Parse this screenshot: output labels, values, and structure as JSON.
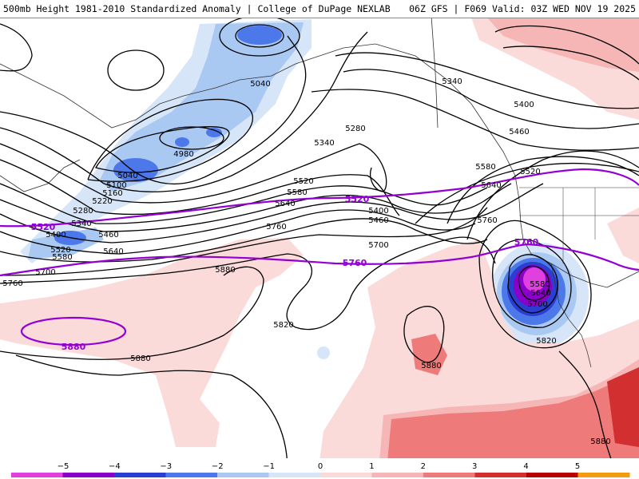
{
  "header": {
    "left_text": "500mb Height 1981-2010 Standardized Anomaly | College of DuPage NEXLAB",
    "right_text": "06Z GFS | F069 Valid: 03Z WED NOV 19 2025"
  },
  "contour_labels": {
    "h5340_ne": "5340",
    "h5400_ne": "5400",
    "h5460_ne": "5460",
    "h5040_n": "5040",
    "h5280_ak": "5280",
    "h5340_ak": "5340",
    "h4980": "4980",
    "h5040_low": "5040",
    "h5100": "5100",
    "h5160": "5160",
    "h5220": "5220",
    "h5280_w": "5280",
    "h5340_w": "5340",
    "h5400_w": "5400",
    "h5460_w": "5460",
    "h5520_w": "5520",
    "h5580_w": "5580",
    "h5640_w": "5640",
    "h5700_w": "5700",
    "h5760_w": "5760",
    "h5520_c": "5520",
    "h5580_c": "5580",
    "h5640_c": "5640",
    "h5760_c": "5760",
    "h5400_c": "5400",
    "h5460_c": "5460",
    "h5700_c": "5700",
    "h5580_e": "5580",
    "h5640_e": "5640",
    "h5520_e": "5520",
    "h5760_e": "5760",
    "h5880_w": "5880",
    "h5880_sw": "5880",
    "h5820_c": "5820",
    "h5880_c": "5880",
    "h5580_low": "5580",
    "h5640_low": "5640",
    "h5700_low": "5700",
    "h5820_low": "5820",
    "h5880_se": "5880"
  },
  "highlight_labels": {
    "p5520_w": "5520",
    "p5520_c": "5520",
    "p5760_c": "5760",
    "p5760_e": "5760",
    "p5880": "5880"
  },
  "colorbar": {
    "ticks": [
      "−5",
      "−4",
      "−3",
      "−2",
      "−1",
      "0",
      "1",
      "2",
      "3",
      "4",
      "5"
    ],
    "colors": {
      "n5": "#e040e0",
      "n4": "#8a00c8",
      "n3": "#2a3fd0",
      "n2": "#4c78ea",
      "n1": "#a9c8f2",
      "n0": "#d6e6f8",
      "p0": "#fbdada",
      "p1": "#f6b6b6",
      "p2": "#ef7a7a",
      "p3": "#d23030",
      "p4": "#b80000",
      "p5": "#f39c12"
    }
  },
  "colors": {
    "contour": "#000000",
    "highlight_contour": "#9400d3",
    "land_border": "#333333"
  }
}
